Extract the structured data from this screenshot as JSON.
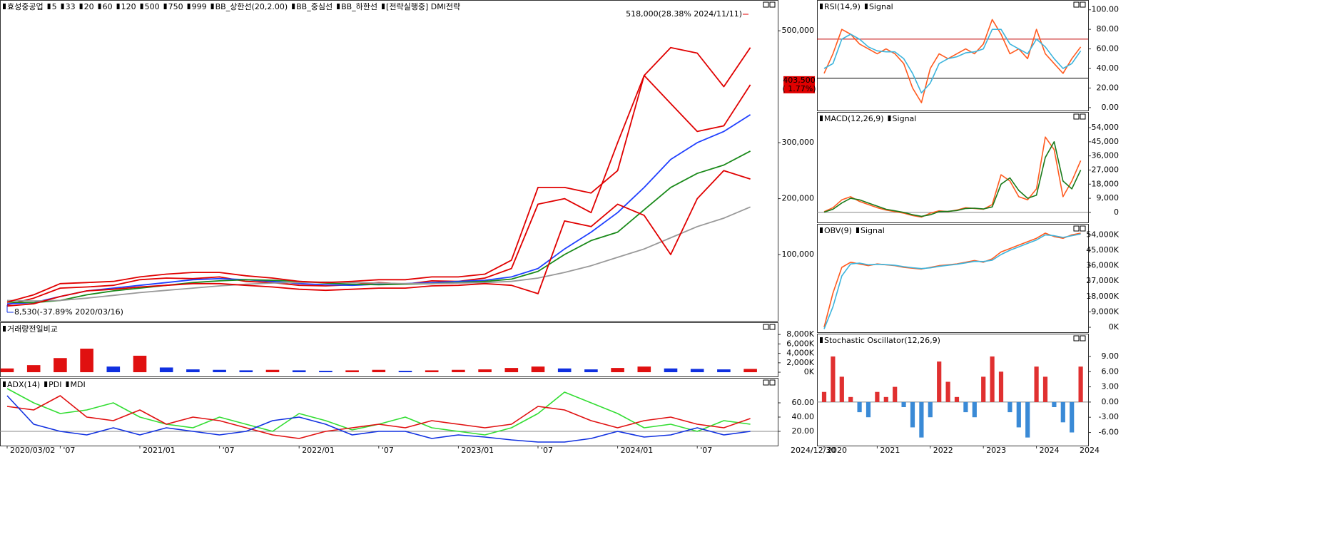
{
  "chart_data": [
    {
      "type": "line",
      "series": [
        {
          "name": "효성중공업",
          "color": "#e00000",
          "values": [
            10000,
            22000,
            40000,
            42000,
            45000,
            55000,
            58000,
            57000,
            60000,
            52000,
            50000,
            45000,
            44000,
            46000,
            50000,
            47000,
            53000,
            52000,
            58000,
            75000,
            190000,
            200000,
            175000,
            300000,
            420000,
            370000,
            320000,
            330000,
            403500
          ]
        },
        {
          "name": "5",
          "color": "#e00000"
        },
        {
          "name": "33",
          "color": "#2040ff",
          "values": [
            12000,
            14000,
            25000,
            35000,
            40000,
            45000,
            50000,
            55000,
            57000,
            55000,
            52000,
            48000,
            46000,
            45000,
            47000,
            48000,
            50000,
            52000,
            54000,
            60000,
            75000,
            110000,
            140000,
            175000,
            220000,
            270000,
            300000,
            320000,
            350000
          ]
        },
        {
          "name": "20",
          "color": "#e07000"
        },
        {
          "name": "60",
          "color": "#1a8a1a",
          "values": [
            15000,
            14000,
            18000,
            28000,
            35000,
            40000,
            45000,
            50000,
            53000,
            55000,
            54000,
            52000,
            49000,
            47000,
            46000,
            47000,
            48000,
            50000,
            52000,
            56000,
            70000,
            100000,
            125000,
            140000,
            180000,
            220000,
            245000,
            260000,
            285000
          ]
        },
        {
          "name": "120",
          "color": "#999999",
          "values": [
            18000,
            17000,
            18000,
            22000,
            27000,
            32000,
            36000,
            40000,
            44000,
            47000,
            49000,
            50000,
            51000,
            50000,
            49000,
            48000,
            48000,
            49000,
            50000,
            52000,
            58000,
            68000,
            80000,
            95000,
            110000,
            130000,
            150000,
            165000,
            185000
          ]
        },
        {
          "name": "500",
          "color": "#e00000"
        },
        {
          "name": "750",
          "color": "#e00000"
        },
        {
          "name": "999",
          "color": "#000000"
        },
        {
          "name": "BB_상한선(20,2.00)",
          "color": "#e00000",
          "values": [
            15000,
            28000,
            48000,
            50000,
            52000,
            60000,
            65000,
            68000,
            68000,
            62000,
            58000,
            52000,
            50000,
            52000,
            55000,
            55000,
            60000,
            60000,
            65000,
            90000,
            220000,
            220000,
            210000,
            250000,
            420000,
            470000,
            460000,
            400000,
            470000
          ]
        },
        {
          "name": "BB_중심선",
          "color": "#1a8a1a"
        },
        {
          "name": "BB_하한선",
          "color": "#e00000",
          "values": [
            8000,
            12000,
            25000,
            35000,
            38000,
            42000,
            45000,
            48000,
            48000,
            45000,
            42000,
            38000,
            36000,
            38000,
            40000,
            40000,
            44000,
            45000,
            48000,
            45000,
            30000,
            160000,
            150000,
            190000,
            170000,
            100000,
            200000,
            250000,
            235000
          ]
        },
        {
          "name": "[전략실행중] DMI전략",
          "color": "#e00000"
        }
      ],
      "ylim": [
        -18500,
        555000
      ],
      "yticks": [
        {
          "value": 100000,
          "label": "100,000"
        },
        {
          "value": 200000,
          "label": "200,000"
        },
        {
          "value": 300000,
          "label": "300,000"
        },
        {
          "value": 500000,
          "label": "500,000"
        }
      ],
      "annotations": [
        {
          "text": "518,000(28.38% 2024/11/11)",
          "color": "#e00000"
        },
        {
          "text": "8,530(-37.89% 2020/03/16)",
          "color": "#1030e0"
        }
      ],
      "last": {
        "value": 403500,
        "label": "403,500",
        "change": "( 1.77%)",
        "color": "#e00000"
      }
    },
    {
      "type": "bar",
      "series": [
        {
          "name": "거래량전일비교",
          "color": "#1030e0",
          "values": [
            800,
            1500,
            3000,
            5000,
            1200,
            3500,
            1000,
            600,
            500,
            400,
            500,
            400,
            300,
            400,
            500,
            300,
            400,
            500,
            600,
            900,
            1200,
            800,
            600,
            900,
            1200,
            800,
            700,
            600,
            700
          ]
        }
      ],
      "color_rule": "change",
      "up_color": "#e01010",
      "down_color": "#1030e0",
      "ylim": [
        -900,
        10600
      ],
      "yticks": [
        {
          "value": 0,
          "label": "0K"
        },
        {
          "value": 2000,
          "label": "2,000K"
        },
        {
          "value": 4000,
          "label": "4,000K"
        },
        {
          "value": 6000,
          "label": "6,000K"
        },
        {
          "value": 8000,
          "label": "8,000K"
        }
      ]
    },
    {
      "type": "line",
      "categories": [
        "2020/03/02",
        null,
        "'07",
        null,
        null,
        "2021/01",
        null,
        null,
        "'07",
        null,
        null,
        "2022/01",
        null,
        null,
        "'07",
        null,
        null,
        "2023/01",
        null,
        null,
        "'07",
        null,
        null,
        "2024/01",
        null,
        null,
        "'07",
        null,
        null
      ],
      "x_end_label": "2024/12/30",
      "series": [
        {
          "name": "ADX(14)",
          "color": "#33dd33",
          "values": [
            80,
            60,
            45,
            50,
            60,
            40,
            30,
            25,
            40,
            30,
            20,
            45,
            35,
            22,
            30,
            40,
            25,
            20,
            15,
            25,
            45,
            75,
            60,
            45,
            25,
            30,
            20,
            35,
            30
          ]
        },
        {
          "name": "PDI",
          "color": "#e01010",
          "values": [
            55,
            50,
            70,
            40,
            35,
            50,
            30,
            40,
            35,
            25,
            15,
            10,
            20,
            25,
            30,
            25,
            35,
            30,
            25,
            30,
            55,
            50,
            35,
            25,
            35,
            40,
            30,
            25,
            38
          ]
        },
        {
          "name": "MDI",
          "color": "#1030e0",
          "values": [
            70,
            30,
            20,
            15,
            25,
            15,
            25,
            20,
            15,
            20,
            35,
            40,
            30,
            15,
            20,
            20,
            10,
            15,
            12,
            8,
            5,
            5,
            10,
            20,
            12,
            15,
            25,
            15,
            20
          ]
        }
      ],
      "ylim": [
        0,
        95
      ],
      "yticks": [
        {
          "value": 20,
          "label": "20.00"
        },
        {
          "value": 40,
          "label": "40.00"
        },
        {
          "value": 60,
          "label": "60.00"
        }
      ],
      "levels": [
        20
      ],
      "level_colors": [
        "#888888"
      ]
    },
    {
      "type": "line",
      "series": [
        {
          "name": "RSI(14,9)",
          "color": "#ff5a1f",
          "values": [
            35,
            55,
            80,
            75,
            65,
            60,
            55,
            60,
            55,
            45,
            20,
            5,
            40,
            55,
            50,
            55,
            60,
            55,
            65,
            90,
            75,
            55,
            60,
            50,
            80,
            55,
            45,
            35,
            50,
            62
          ]
        },
        {
          "name": "Signal",
          "color": "#3cb4dc",
          "values": [
            40,
            45,
            70,
            75,
            70,
            62,
            58,
            57,
            57,
            50,
            35,
            15,
            25,
            45,
            50,
            52,
            56,
            57,
            60,
            80,
            80,
            65,
            60,
            55,
            70,
            62,
            50,
            40,
            45,
            58
          ]
        }
      ],
      "ylim": [
        -3,
        110
      ],
      "yticks": [
        {
          "value": 0,
          "label": "0.00"
        },
        {
          "value": 20,
          "label": "20.00"
        },
        {
          "value": 40,
          "label": "40.00"
        },
        {
          "value": 60,
          "label": "60.00"
        },
        {
          "value": 80,
          "label": "80.00"
        },
        {
          "value": 100,
          "label": "100.00"
        }
      ],
      "levels": [
        70,
        30
      ],
      "level_colors": [
        "#c00000",
        "#000000"
      ]
    },
    {
      "type": "line",
      "series": [
        {
          "name": "MACD(12,26,9)",
          "color": "#ff5a1f",
          "values": [
            500,
            3000,
            8000,
            10000,
            7000,
            5000,
            3000,
            1500,
            500,
            -500,
            -2000,
            -3000,
            -500,
            1000,
            500,
            1500,
            3000,
            2500,
            2000,
            5000,
            24000,
            20000,
            10000,
            8000,
            15000,
            48000,
            40000,
            10000,
            20000,
            33000
          ]
        },
        {
          "name": "Signal",
          "color": "#1a7a1a",
          "values": [
            200,
            2000,
            6000,
            9000,
            8000,
            6000,
            4000,
            2000,
            1000,
            0,
            -1500,
            -2500,
            -1500,
            500,
            700,
            1200,
            2500,
            2700,
            2200,
            3500,
            18000,
            22000,
            14000,
            9000,
            11000,
            35000,
            45000,
            20000,
            15000,
            27000
          ]
        }
      ],
      "ylim": [
        -6400,
        64000
      ],
      "yticks": [
        0,
        {
          "value": 9000,
          "label": "9,000"
        },
        {
          "value": 18000,
          "label": "18,000"
        },
        {
          "value": 27000,
          "label": "27,000"
        },
        {
          "value": 36000,
          "label": "36,000"
        },
        {
          "value": 45000,
          "label": "45,000"
        },
        {
          "value": 54000,
          "label": "54,000"
        }
      ],
      "levels": [
        0
      ],
      "level_colors": [
        "#888888"
      ]
    },
    {
      "type": "line",
      "series": [
        {
          "name": "OBV(9)",
          "color": "#ff5a1f",
          "values": [
            0,
            20000,
            35000,
            38000,
            37000,
            36000,
            37000,
            36500,
            36000,
            35000,
            34500,
            34000,
            35000,
            36000,
            36500,
            37000,
            38000,
            39000,
            38000,
            40000,
            44000,
            46000,
            48000,
            50000,
            52000,
            55000,
            53000,
            52000,
            54000,
            55000
          ]
        },
        {
          "name": "Signal",
          "color": "#3cb4dc",
          "values": [
            -1000,
            12000,
            30000,
            37000,
            37500,
            36500,
            36800,
            36600,
            36200,
            35400,
            34800,
            34300,
            34700,
            35600,
            36200,
            36800,
            37600,
            38500,
            38400,
            39200,
            42500,
            45000,
            47000,
            49000,
            51000,
            54000,
            53500,
            52500,
            53500,
            54500
          ]
        }
      ],
      "ylim": [
        -2900,
        60400
      ],
      "yticks": [
        {
          "value": 0,
          "label": "0K"
        },
        {
          "value": 9000,
          "label": "9,000K"
        },
        {
          "value": 18000,
          "label": "18,000K"
        },
        {
          "value": 27000,
          "label": "27,000K"
        },
        {
          "value": 36000,
          "label": "36,000K"
        },
        {
          "value": 45000,
          "label": "45,000K"
        },
        {
          "value": 54000,
          "label": "54,000K"
        }
      ]
    },
    {
      "type": "bar",
      "categories": [
        "2020",
        null,
        null,
        null,
        null,
        null,
        "2021",
        null,
        null,
        null,
        null,
        null,
        "2022",
        null,
        null,
        null,
        null,
        null,
        "2023",
        null,
        null,
        null,
        null,
        null,
        "2024",
        null,
        null,
        null,
        null,
        null
      ],
      "x_end_label": "2024",
      "series": [
        {
          "name": "Stochastic Oscillator(12,26,9)",
          "color": "#c02020",
          "values": [
            2,
            9,
            5,
            1,
            -2,
            -3,
            2,
            1,
            3,
            -1,
            -5,
            -7,
            -3,
            8,
            4,
            1,
            -2,
            -3,
            5,
            9,
            6,
            -2,
            -5,
            -7,
            7,
            5,
            -1,
            -4,
            -6,
            7
          ]
        }
      ],
      "color_rule": "sign",
      "up_color": "#e03030",
      "down_color": "#3a8ad6",
      "ylim": [
        -8.6,
        13.5
      ],
      "yticks": [
        {
          "value": -6,
          "label": "-6.00"
        },
        {
          "value": -3,
          "label": "-3.00"
        },
        {
          "value": 0,
          "label": "0.00"
        },
        {
          "value": 3,
          "label": "3.00"
        },
        {
          "value": 6,
          "label": "6.00"
        },
        {
          "value": 9,
          "label": "9.00"
        }
      ],
      "levels": [
        0
      ],
      "level_colors": [
        "#888888"
      ]
    }
  ]
}
